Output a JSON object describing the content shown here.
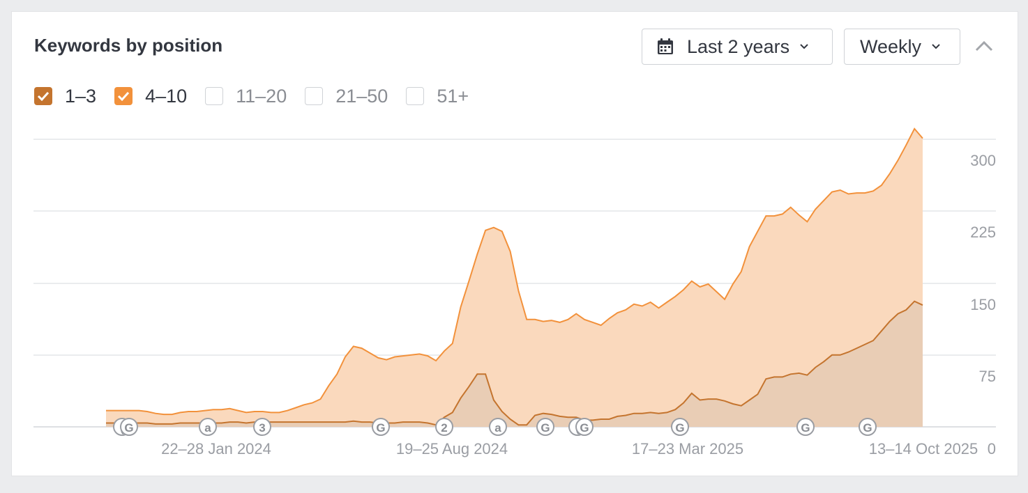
{
  "header": {
    "title": "Keywords by position",
    "range_label": "Last 2 years",
    "interval_label": "Weekly"
  },
  "filters": [
    {
      "label": "1–3",
      "checked": true,
      "color": "#c4742e"
    },
    {
      "label": "4–10",
      "checked": true,
      "color": "#f2913b"
    },
    {
      "label": "11–20",
      "checked": false
    },
    {
      "label": "21–50",
      "checked": false
    },
    {
      "label": "51+",
      "checked": false
    }
  ],
  "colors": {
    "series_1_3_line": "#c4742e",
    "series_1_3_fill": "#e9cdb5",
    "series_4_10_line": "#f2913b",
    "series_4_10_fill": "#fad9bd",
    "grid": "#e4e5e8",
    "axis_text": "#9a9da3"
  },
  "icons": [
    "calendar-icon",
    "chevron-down-icon",
    "chevron-up-icon",
    "check-icon"
  ],
  "chart_data": {
    "type": "area",
    "stacked": true,
    "ylim": [
      0,
      300
    ],
    "yticks": [
      300,
      225,
      150,
      75,
      0
    ],
    "xtick_labels": [
      "22–28 Jan 2024",
      "19–25 Aug 2024",
      "17–23 Mar 2025",
      "13–14 Oct 2025"
    ],
    "grid": true,
    "y_axis_position": "right",
    "series": [
      {
        "name": "1–3",
        "values": [
          4,
          4,
          4,
          4,
          4,
          4,
          3,
          3,
          3,
          4,
          4,
          4,
          4,
          4,
          4,
          5,
          5,
          4,
          5,
          5,
          5,
          5,
          5,
          5,
          5,
          5,
          5,
          5,
          5,
          5,
          6,
          5,
          5,
          4,
          4,
          4,
          5,
          5,
          5,
          4,
          2,
          10,
          15,
          30,
          42,
          55,
          55,
          28,
          16,
          8,
          2,
          2,
          12,
          14,
          13,
          11,
          10,
          10,
          7,
          7,
          8,
          8,
          11,
          12,
          14,
          14,
          15,
          14,
          15,
          18,
          25,
          35,
          28,
          29,
          29,
          27,
          24,
          22,
          28,
          34,
          50,
          52,
          52,
          55,
          56,
          54,
          62,
          68,
          75,
          75,
          78,
          82,
          86,
          90,
          100,
          110,
          118,
          122,
          131,
          127
        ]
      },
      {
        "name": "4–10",
        "values": [
          13,
          13,
          13,
          13,
          13,
          12,
          11,
          10,
          10,
          11,
          12,
          12,
          13,
          14,
          14,
          14,
          12,
          11,
          11,
          11,
          10,
          10,
          12,
          15,
          18,
          20,
          24,
          38,
          50,
          68,
          78,
          77,
          72,
          68,
          66,
          69,
          69,
          70,
          71,
          70,
          67,
          69,
          72,
          95,
          110,
          125,
          150,
          180,
          188,
          175,
          140,
          110,
          100,
          96,
          98,
          98,
          102,
          108,
          105,
          102,
          98,
          105,
          108,
          110,
          114,
          112,
          115,
          110,
          115,
          118,
          118,
          117,
          118,
          120,
          112,
          106,
          125,
          140,
          160,
          170,
          170,
          168,
          170,
          174,
          165,
          160,
          165,
          168,
          170,
          172,
          165,
          162,
          158,
          156,
          152,
          154,
          160,
          172,
          180,
          174
        ]
      }
    ],
    "event_markers": [
      "(",
      "G",
      "a",
      "3",
      "G",
      "2",
      "a",
      "G",
      "(",
      "G",
      "G",
      "G",
      "G"
    ]
  }
}
